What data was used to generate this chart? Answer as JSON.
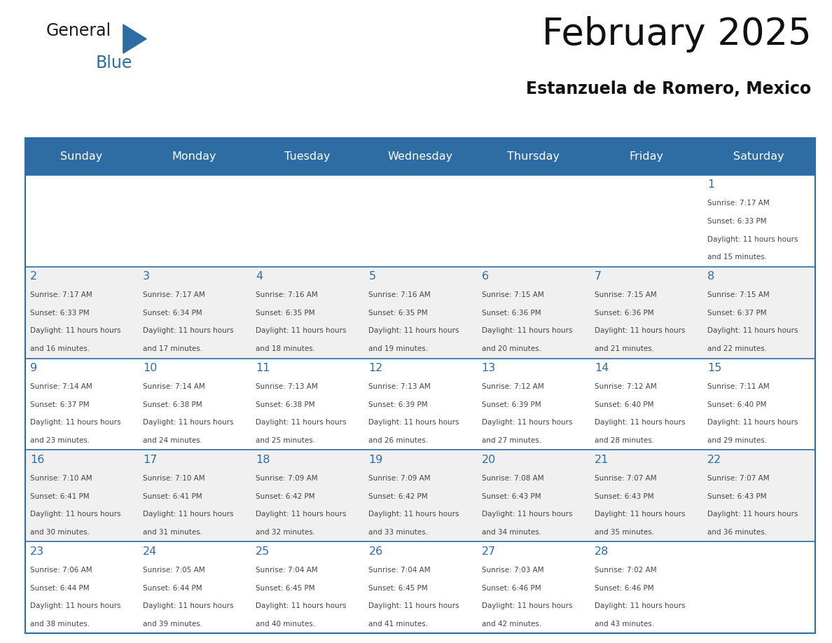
{
  "title": "February 2025",
  "subtitle": "Estanzuela de Romero, Mexico",
  "header_bg": "#2E6DA4",
  "header_text_color": "#FFFFFF",
  "day_names": [
    "Sunday",
    "Monday",
    "Tuesday",
    "Wednesday",
    "Thursday",
    "Friday",
    "Saturday"
  ],
  "cell_bg_white": "#FFFFFF",
  "cell_bg_light": "#F0F0F0",
  "border_color": "#2E6DA4",
  "day_number_color": "#2E6DA4",
  "text_color": "#444444",
  "calendar": [
    [
      null,
      null,
      null,
      null,
      null,
      null,
      {
        "day": 1,
        "sunrise": "7:17 AM",
        "sunset": "6:33 PM",
        "daylight": "11 hours and 15 minutes"
      }
    ],
    [
      {
        "day": 2,
        "sunrise": "7:17 AM",
        "sunset": "6:33 PM",
        "daylight": "11 hours and 16 minutes"
      },
      {
        "day": 3,
        "sunrise": "7:17 AM",
        "sunset": "6:34 PM",
        "daylight": "11 hours and 17 minutes"
      },
      {
        "day": 4,
        "sunrise": "7:16 AM",
        "sunset": "6:35 PM",
        "daylight": "11 hours and 18 minutes"
      },
      {
        "day": 5,
        "sunrise": "7:16 AM",
        "sunset": "6:35 PM",
        "daylight": "11 hours and 19 minutes"
      },
      {
        "day": 6,
        "sunrise": "7:15 AM",
        "sunset": "6:36 PM",
        "daylight": "11 hours and 20 minutes"
      },
      {
        "day": 7,
        "sunrise": "7:15 AM",
        "sunset": "6:36 PM",
        "daylight": "11 hours and 21 minutes"
      },
      {
        "day": 8,
        "sunrise": "7:15 AM",
        "sunset": "6:37 PM",
        "daylight": "11 hours and 22 minutes"
      }
    ],
    [
      {
        "day": 9,
        "sunrise": "7:14 AM",
        "sunset": "6:37 PM",
        "daylight": "11 hours and 23 minutes"
      },
      {
        "day": 10,
        "sunrise": "7:14 AM",
        "sunset": "6:38 PM",
        "daylight": "11 hours and 24 minutes"
      },
      {
        "day": 11,
        "sunrise": "7:13 AM",
        "sunset": "6:38 PM",
        "daylight": "11 hours and 25 minutes"
      },
      {
        "day": 12,
        "sunrise": "7:13 AM",
        "sunset": "6:39 PM",
        "daylight": "11 hours and 26 minutes"
      },
      {
        "day": 13,
        "sunrise": "7:12 AM",
        "sunset": "6:39 PM",
        "daylight": "11 hours and 27 minutes"
      },
      {
        "day": 14,
        "sunrise": "7:12 AM",
        "sunset": "6:40 PM",
        "daylight": "11 hours and 28 minutes"
      },
      {
        "day": 15,
        "sunrise": "7:11 AM",
        "sunset": "6:40 PM",
        "daylight": "11 hours and 29 minutes"
      }
    ],
    [
      {
        "day": 16,
        "sunrise": "7:10 AM",
        "sunset": "6:41 PM",
        "daylight": "11 hours and 30 minutes"
      },
      {
        "day": 17,
        "sunrise": "7:10 AM",
        "sunset": "6:41 PM",
        "daylight": "11 hours and 31 minutes"
      },
      {
        "day": 18,
        "sunrise": "7:09 AM",
        "sunset": "6:42 PM",
        "daylight": "11 hours and 32 minutes"
      },
      {
        "day": 19,
        "sunrise": "7:09 AM",
        "sunset": "6:42 PM",
        "daylight": "11 hours and 33 minutes"
      },
      {
        "day": 20,
        "sunrise": "7:08 AM",
        "sunset": "6:43 PM",
        "daylight": "11 hours and 34 minutes"
      },
      {
        "day": 21,
        "sunrise": "7:07 AM",
        "sunset": "6:43 PM",
        "daylight": "11 hours and 35 minutes"
      },
      {
        "day": 22,
        "sunrise": "7:07 AM",
        "sunset": "6:43 PM",
        "daylight": "11 hours and 36 minutes"
      }
    ],
    [
      {
        "day": 23,
        "sunrise": "7:06 AM",
        "sunset": "6:44 PM",
        "daylight": "11 hours and 38 minutes"
      },
      {
        "day": 24,
        "sunrise": "7:05 AM",
        "sunset": "6:44 PM",
        "daylight": "11 hours and 39 minutes"
      },
      {
        "day": 25,
        "sunrise": "7:04 AM",
        "sunset": "6:45 PM",
        "daylight": "11 hours and 40 minutes"
      },
      {
        "day": 26,
        "sunrise": "7:04 AM",
        "sunset": "6:45 PM",
        "daylight": "11 hours and 41 minutes"
      },
      {
        "day": 27,
        "sunrise": "7:03 AM",
        "sunset": "6:46 PM",
        "daylight": "11 hours and 42 minutes"
      },
      {
        "day": 28,
        "sunrise": "7:02 AM",
        "sunset": "6:46 PM",
        "daylight": "11 hours and 43 minutes"
      },
      null
    ]
  ],
  "logo_general_color": "#1a1a1a",
  "logo_blue_color": "#2E6DA4",
  "logo_triangle_color": "#2E6DA4"
}
